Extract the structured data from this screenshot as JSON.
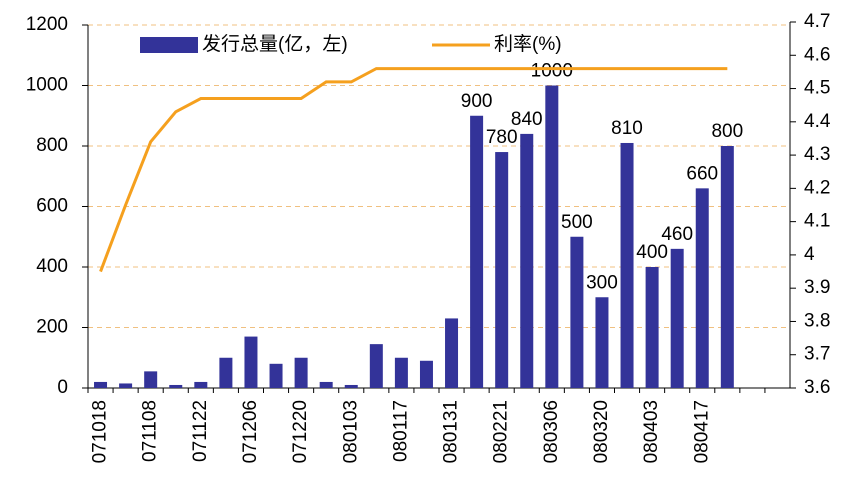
{
  "chart_data": {
    "type": "bar",
    "categories": [
      "071018",
      null,
      "071108",
      null,
      "071122",
      null,
      "071206",
      null,
      "071220",
      null,
      "080103",
      null,
      "080117",
      null,
      "080131",
      null,
      "080221",
      null,
      "080306",
      null,
      "080320",
      null,
      "080403",
      null,
      "080417",
      null,
      null,
      null
    ],
    "series": [
      {
        "name": "发行总量(亿，左)",
        "type": "bar",
        "color": "#333399",
        "values": [
          20,
          15,
          55,
          10,
          20,
          100,
          170,
          80,
          100,
          20,
          10,
          145,
          100,
          90,
          230,
          900,
          780,
          840,
          1000,
          500,
          300,
          810,
          400,
          460,
          660,
          800,
          null,
          null
        ],
        "value_labels": [
          null,
          null,
          null,
          null,
          null,
          null,
          null,
          null,
          null,
          null,
          null,
          null,
          null,
          null,
          null,
          "900",
          "780",
          "840",
          "1000",
          "500",
          "300",
          "810",
          "400",
          "460",
          "660",
          "800",
          null,
          null
        ]
      },
      {
        "name": "利率(%)",
        "type": "line",
        "axis": "y2",
        "color": "#f5a01e",
        "values": [
          3.95,
          4.15,
          4.34,
          4.43,
          4.47,
          4.47,
          4.47,
          4.47,
          4.47,
          4.52,
          4.52,
          4.56,
          4.56,
          4.56,
          4.56,
          4.56,
          4.56,
          4.56,
          4.56,
          4.56,
          4.56,
          4.56,
          4.56,
          4.56,
          4.56,
          4.56,
          null,
          null
        ]
      }
    ],
    "ylim": [
      0,
      1200
    ],
    "yticks": [
      0,
      200,
      400,
      600,
      800,
      1000,
      1200
    ],
    "y2lim": [
      3.6,
      4.7
    ],
    "y2ticks": [
      3.6,
      3.7,
      3.8,
      3.9,
      4,
      4.1,
      4.2,
      4.3,
      4.4,
      4.5,
      4.6,
      4.7
    ],
    "grid": true,
    "legend": "top"
  }
}
